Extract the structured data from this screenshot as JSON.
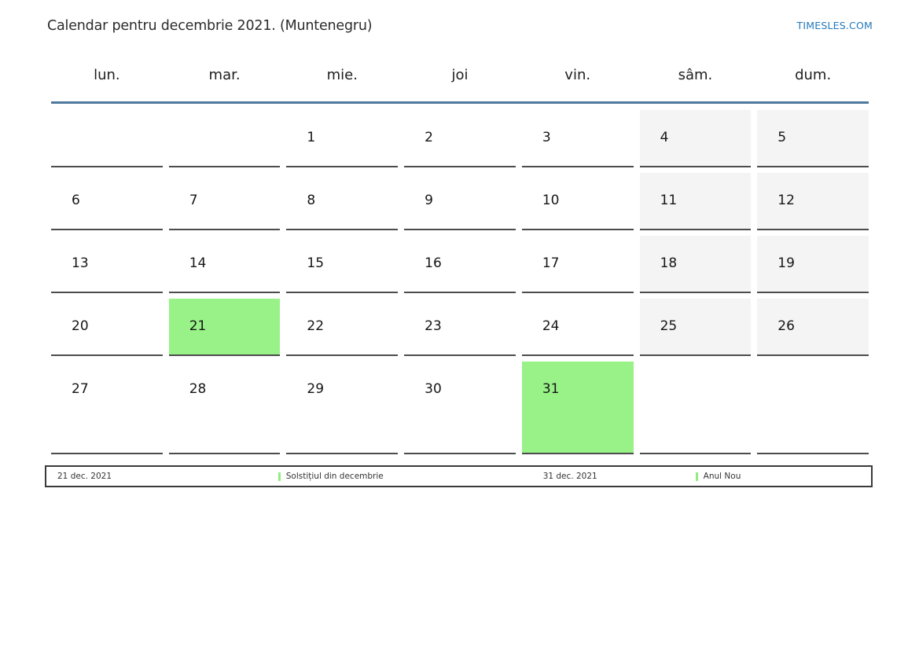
{
  "header": {
    "title": "Calendar pentru decembrie 2021. (Muntenegru)",
    "site_link": "TIMESLES.COM"
  },
  "weekdays": [
    "lun.",
    "mar.",
    "mie.",
    "joi",
    "vin.",
    "sâm.",
    "dum."
  ],
  "calendar": {
    "weeks": [
      [
        {
          "day": "",
          "type": "empty"
        },
        {
          "day": "",
          "type": "empty"
        },
        {
          "day": "1",
          "type": "day"
        },
        {
          "day": "2",
          "type": "day"
        },
        {
          "day": "3",
          "type": "day"
        },
        {
          "day": "4",
          "type": "weekend"
        },
        {
          "day": "5",
          "type": "weekend"
        }
      ],
      [
        {
          "day": "6",
          "type": "day"
        },
        {
          "day": "7",
          "type": "day"
        },
        {
          "day": "8",
          "type": "day"
        },
        {
          "day": "9",
          "type": "day"
        },
        {
          "day": "10",
          "type": "day"
        },
        {
          "day": "11",
          "type": "weekend"
        },
        {
          "day": "12",
          "type": "weekend"
        }
      ],
      [
        {
          "day": "13",
          "type": "day"
        },
        {
          "day": "14",
          "type": "day"
        },
        {
          "day": "15",
          "type": "day"
        },
        {
          "day": "16",
          "type": "day"
        },
        {
          "day": "17",
          "type": "day"
        },
        {
          "day": "18",
          "type": "weekend"
        },
        {
          "day": "19",
          "type": "weekend"
        }
      ],
      [
        {
          "day": "20",
          "type": "day"
        },
        {
          "day": "21",
          "type": "holiday"
        },
        {
          "day": "22",
          "type": "day"
        },
        {
          "day": "23",
          "type": "day"
        },
        {
          "day": "24",
          "type": "day"
        },
        {
          "day": "25",
          "type": "weekend"
        },
        {
          "day": "26",
          "type": "weekend"
        }
      ],
      [
        {
          "day": "27",
          "type": "day"
        },
        {
          "day": "28",
          "type": "day"
        },
        {
          "day": "29",
          "type": "day"
        },
        {
          "day": "30",
          "type": "day"
        },
        {
          "day": "31",
          "type": "holiday"
        },
        {
          "day": "",
          "type": "empty"
        },
        {
          "day": "",
          "type": "empty"
        }
      ]
    ]
  },
  "legend": {
    "items": [
      {
        "date": "21 dec. 2021",
        "event": "Solstițiul din decembrie"
      },
      {
        "date": "31 dec. 2021",
        "event": "Anul Nou"
      }
    ]
  },
  "colors": {
    "header_rule": "#50789d",
    "link": "#2579be",
    "weekend_bg": "#f4f4f4",
    "holiday_bg": "#98f287",
    "legend_marker": "#90ed7e"
  }
}
